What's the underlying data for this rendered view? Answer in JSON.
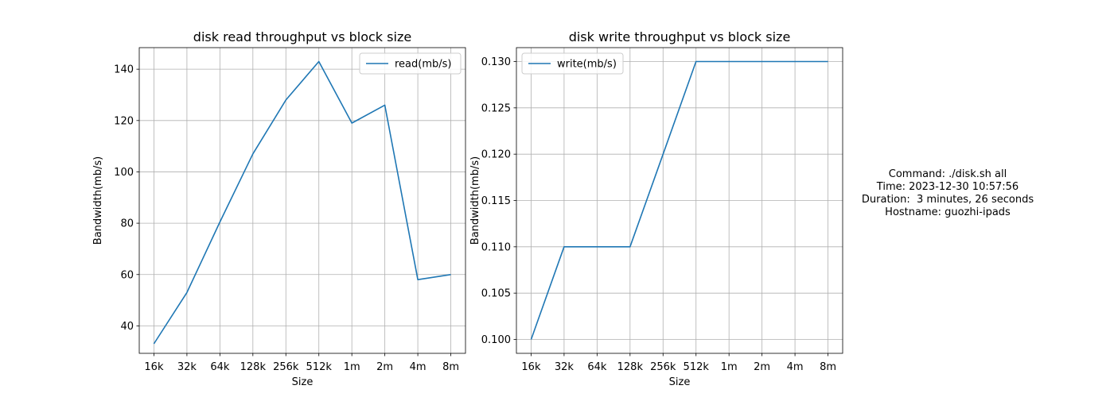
{
  "chart_data": [
    {
      "type": "line",
      "title": "disk read throughput vs block size",
      "xlabel": "Size",
      "ylabel": "Bandwidth(mb/s)",
      "categories": [
        "16k",
        "32k",
        "64k",
        "128k",
        "256k",
        "512k",
        "1m",
        "2m",
        "4m",
        "8m"
      ],
      "series": [
        {
          "name": "read(mb/s)",
          "values": [
            33.0,
            53.0,
            80.5,
            107.0,
            128.0,
            143.0,
            119.0,
            126.0,
            58.0,
            60.0
          ]
        }
      ],
      "ylim": [
        29.3,
        148.4
      ],
      "yticks": [
        40,
        60,
        80,
        100,
        120,
        140
      ],
      "ytick_labels": [
        "40",
        "60",
        "80",
        "100",
        "120",
        "140"
      ],
      "grid": true,
      "legend_position": "upper right",
      "line_color": "#1f77b4"
    },
    {
      "type": "line",
      "title": "disk write throughput vs block size",
      "xlabel": "Size",
      "ylabel": "Bandwidth(mb/s)",
      "categories": [
        "16k",
        "32k",
        "64k",
        "128k",
        "256k",
        "512k",
        "1m",
        "2m",
        "4m",
        "8m"
      ],
      "series": [
        {
          "name": "write(mb/s)",
          "values": [
            0.1,
            0.11,
            0.11,
            0.11,
            0.12,
            0.13,
            0.13,
            0.13,
            0.13,
            0.13
          ]
        }
      ],
      "ylim": [
        0.0985,
        0.1315
      ],
      "yticks": [
        0.1,
        0.105,
        0.11,
        0.115,
        0.12,
        0.125,
        0.13
      ],
      "ytick_labels": [
        "0.100",
        "0.105",
        "0.110",
        "0.115",
        "0.120",
        "0.125",
        "0.130"
      ],
      "grid": true,
      "legend_position": "upper left",
      "line_color": "#1f77b4"
    }
  ],
  "info": {
    "command": "Command: ./disk.sh all",
    "time": "Time: 2023-12-30 10:57:56",
    "duration": "Duration:  3 minutes, 26 seconds",
    "hostname": "Hostname: guozhi-ipads"
  }
}
